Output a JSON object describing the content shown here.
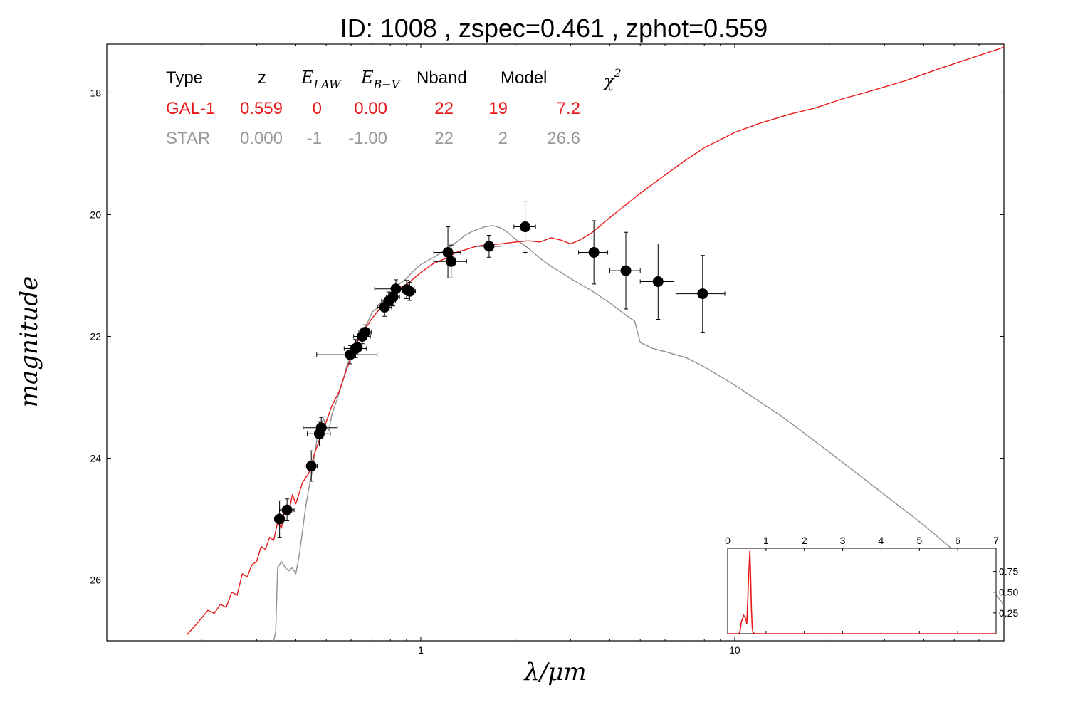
{
  "chart_data": {
    "type": "scatter",
    "title": "ID:  1008  , zspec=0.461 , zphot=0.559",
    "xlabel": "λ/μm",
    "ylabel": "magnitude",
    "x_scale": "log",
    "y_inverted": true,
    "xlim": [
      0.1,
      72
    ],
    "ylim": [
      27,
      17.2
    ],
    "x_ticks": [
      {
        "value": 1,
        "label": "1"
      },
      {
        "value": 10,
        "label": "10"
      }
    ],
    "y_ticks": [
      {
        "value": 18,
        "label": "18"
      },
      {
        "value": 20,
        "label": "20"
      },
      {
        "value": 22,
        "label": "22"
      },
      {
        "value": 24,
        "label": "24"
      },
      {
        "value": 26,
        "label": "26"
      }
    ],
    "colors": {
      "galaxy": "#e8191b",
      "star": "#909090",
      "points": "#000000"
    },
    "fit_table": {
      "headers": [
        "Type",
        "z",
        "E_LAW",
        "E_B−V",
        "Nband",
        "Model",
        "χ²"
      ],
      "rows": [
        {
          "type": "GAL-1",
          "z": "0.559",
          "elaw": "0",
          "ebv": "0.00",
          "nband": "22",
          "model": "19",
          "chi2": "7.2",
          "color": "#e8191b"
        },
        {
          "type": "STAR",
          "z": "0.000",
          "elaw": "-1",
          "ebv": "-1.00",
          "nband": "22",
          "model": "2",
          "chi2": "26.6",
          "color": "#999999"
        }
      ]
    },
    "photometry": [
      {
        "x": 0.355,
        "y": 25.0,
        "xerr": 0.013,
        "yerr": 0.3
      },
      {
        "x": 0.375,
        "y": 24.85,
        "xerr": 0.02,
        "yerr": 0.18
      },
      {
        "x": 0.448,
        "y": 24.13,
        "xerr": 0.02,
        "yerr": 0.25
      },
      {
        "x": 0.475,
        "y": 23.6,
        "xerr": 0.04,
        "yerr": 0.2
      },
      {
        "x": 0.482,
        "y": 23.5,
        "xerr": 0.06,
        "yerr": 0.17
      },
      {
        "x": 0.596,
        "y": 22.3,
        "xerr": 0.13,
        "yerr": 0.15
      },
      {
        "x": 0.62,
        "y": 22.2,
        "xerr": 0.05,
        "yerr": 0.15
      },
      {
        "x": 0.628,
        "y": 22.18,
        "xerr": 0.02,
        "yerr": 0.12
      },
      {
        "x": 0.651,
        "y": 22.0,
        "xerr": 0.04,
        "yerr": 0.12
      },
      {
        "x": 0.665,
        "y": 21.93,
        "xerr": 0.03,
        "yerr": 0.12
      },
      {
        "x": 0.767,
        "y": 21.52,
        "xerr": 0.04,
        "yerr": 0.15
      },
      {
        "x": 0.79,
        "y": 21.42,
        "xerr": 0.04,
        "yerr": 0.15
      },
      {
        "x": 0.816,
        "y": 21.35,
        "xerr": 0.04,
        "yerr": 0.15
      },
      {
        "x": 0.833,
        "y": 21.22,
        "xerr": 0.12,
        "yerr": 0.15
      },
      {
        "x": 0.901,
        "y": 21.23,
        "xerr": 0.04,
        "yerr": 0.15
      },
      {
        "x": 0.922,
        "y": 21.26,
        "xerr": 0.04,
        "yerr": 0.15
      },
      {
        "x": 1.22,
        "y": 20.62,
        "xerr": 0.12,
        "yerr": 0.42
      },
      {
        "x": 1.25,
        "y": 20.77,
        "xerr": 0.15,
        "yerr": 0.27
      },
      {
        "x": 1.65,
        "y": 20.52,
        "xerr": 0.15,
        "yerr": 0.18
      },
      {
        "x": 2.15,
        "y": 20.2,
        "xerr": 0.17,
        "yerr": 0.42
      },
      {
        "x": 3.56,
        "y": 20.62,
        "xerr": 0.38,
        "yerr": 0.52
      },
      {
        "x": 4.5,
        "y": 20.92,
        "xerr": 0.5,
        "yerr": 0.63
      },
      {
        "x": 5.7,
        "y": 21.1,
        "xerr": 0.7,
        "yerr": 0.62
      },
      {
        "x": 7.9,
        "y": 21.3,
        "xerr": 1.4,
        "yerr": 0.63
      }
    ],
    "series": [
      {
        "name": "GAL-1",
        "color": "#e8191b",
        "points": [
          [
            0.18,
            26.9
          ],
          [
            0.195,
            26.7
          ],
          [
            0.21,
            26.5
          ],
          [
            0.22,
            26.55
          ],
          [
            0.23,
            26.4
          ],
          [
            0.24,
            26.45
          ],
          [
            0.25,
            26.2
          ],
          [
            0.26,
            26.25
          ],
          [
            0.27,
            25.9
          ],
          [
            0.28,
            25.95
          ],
          [
            0.29,
            25.75
          ],
          [
            0.3,
            25.7
          ],
          [
            0.31,
            25.45
          ],
          [
            0.32,
            25.5
          ],
          [
            0.33,
            25.3
          ],
          [
            0.34,
            25.35
          ],
          [
            0.35,
            25.05
          ],
          [
            0.36,
            25.15
          ],
          [
            0.37,
            24.8
          ],
          [
            0.38,
            24.9
          ],
          [
            0.39,
            24.6
          ],
          [
            0.4,
            24.75
          ],
          [
            0.42,
            24.4
          ],
          [
            0.44,
            24.25
          ],
          [
            0.46,
            23.9
          ],
          [
            0.48,
            23.65
          ],
          [
            0.5,
            23.4
          ],
          [
            0.52,
            23.15
          ],
          [
            0.55,
            22.9
          ],
          [
            0.58,
            22.55
          ],
          [
            0.61,
            22.25
          ],
          [
            0.64,
            22.0
          ],
          [
            0.67,
            21.85
          ],
          [
            0.7,
            21.7
          ],
          [
            0.74,
            21.55
          ],
          [
            0.78,
            21.45
          ],
          [
            0.82,
            21.3
          ],
          [
            0.86,
            21.2
          ],
          [
            0.9,
            21.15
          ],
          [
            0.95,
            21.05
          ],
          [
            1.0,
            20.95
          ],
          [
            1.1,
            20.8
          ],
          [
            1.2,
            20.72
          ],
          [
            1.3,
            20.62
          ],
          [
            1.4,
            20.57
          ],
          [
            1.5,
            20.52
          ],
          [
            1.6,
            20.5
          ],
          [
            1.8,
            20.48
          ],
          [
            2.0,
            20.45
          ],
          [
            2.2,
            20.43
          ],
          [
            2.4,
            20.45
          ],
          [
            2.6,
            20.38
          ],
          [
            2.8,
            20.42
          ],
          [
            3.0,
            20.48
          ],
          [
            3.2,
            20.42
          ],
          [
            3.5,
            20.3
          ],
          [
            4.0,
            20.05
          ],
          [
            5.0,
            19.65
          ],
          [
            6.0,
            19.35
          ],
          [
            7.0,
            19.1
          ],
          [
            8.0,
            18.9
          ],
          [
            10.0,
            18.65
          ],
          [
            12.0,
            18.5
          ],
          [
            15.0,
            18.35
          ],
          [
            18.0,
            18.25
          ],
          [
            22.0,
            18.1
          ],
          [
            28.0,
            17.95
          ],
          [
            35.0,
            17.8
          ],
          [
            45.0,
            17.6
          ],
          [
            55.0,
            17.45
          ],
          [
            72.0,
            17.25
          ]
        ]
      },
      {
        "name": "STAR",
        "color": "#909090",
        "points": [
          [
            0.34,
            27.0
          ],
          [
            0.345,
            26.85
          ],
          [
            0.35,
            25.8
          ],
          [
            0.36,
            25.7
          ],
          [
            0.37,
            25.8
          ],
          [
            0.38,
            25.85
          ],
          [
            0.39,
            25.8
          ],
          [
            0.4,
            25.9
          ],
          [
            0.41,
            25.6
          ],
          [
            0.42,
            25.2
          ],
          [
            0.43,
            24.8
          ],
          [
            0.44,
            24.5
          ],
          [
            0.45,
            24.25
          ],
          [
            0.46,
            23.9
          ],
          [
            0.47,
            23.6
          ],
          [
            0.48,
            23.45
          ],
          [
            0.49,
            23.35
          ],
          [
            0.5,
            23.5
          ],
          [
            0.51,
            23.55
          ],
          [
            0.52,
            23.3
          ],
          [
            0.54,
            23.05
          ],
          [
            0.56,
            22.8
          ],
          [
            0.58,
            22.5
          ],
          [
            0.6,
            22.3
          ],
          [
            0.62,
            22.1
          ],
          [
            0.64,
            21.95
          ],
          [
            0.66,
            21.9
          ],
          [
            0.68,
            21.75
          ],
          [
            0.7,
            21.6
          ],
          [
            0.72,
            21.55
          ],
          [
            0.74,
            21.45
          ],
          [
            0.76,
            21.6
          ],
          [
            0.78,
            21.4
          ],
          [
            0.8,
            21.3
          ],
          [
            0.85,
            21.15
          ],
          [
            0.9,
            21.05
          ],
          [
            0.95,
            20.92
          ],
          [
            1.0,
            20.82
          ],
          [
            1.1,
            20.7
          ],
          [
            1.2,
            20.58
          ],
          [
            1.3,
            20.45
          ],
          [
            1.4,
            20.32
          ],
          [
            1.5,
            20.25
          ],
          [
            1.6,
            20.2
          ],
          [
            1.7,
            20.18
          ],
          [
            1.8,
            20.22
          ],
          [
            1.9,
            20.3
          ],
          [
            2.0,
            20.4
          ],
          [
            2.2,
            20.55
          ],
          [
            2.4,
            20.72
          ],
          [
            2.6,
            20.85
          ],
          [
            2.8,
            20.95
          ],
          [
            3.0,
            21.05
          ],
          [
            3.5,
            21.25
          ],
          [
            4.0,
            21.45
          ],
          [
            4.5,
            21.65
          ],
          [
            4.8,
            21.75
          ],
          [
            5.0,
            22.1
          ],
          [
            5.5,
            22.2
          ],
          [
            6.0,
            22.25
          ],
          [
            7.0,
            22.35
          ],
          [
            8.0,
            22.5
          ],
          [
            10.0,
            22.8
          ],
          [
            14.0,
            23.3
          ],
          [
            20.0,
            23.9
          ],
          [
            30.0,
            24.6
          ],
          [
            40.0,
            25.1
          ],
          [
            55.0,
            25.7
          ],
          [
            72.0,
            26.4
          ]
        ]
      }
    ],
    "inset": {
      "type": "line",
      "xlim": [
        0,
        7
      ],
      "ylim": [
        0,
        1.03
      ],
      "x_ticks": [
        "0",
        "1",
        "2",
        "3",
        "4",
        "5",
        "6",
        "7"
      ],
      "y_ticks": [
        {
          "value": 0.25,
          "label": "0.25"
        },
        {
          "value": 0.5,
          "label": "0.50"
        },
        {
          "value": 0.75,
          "label": "0.75"
        }
      ],
      "color": "#e8191b",
      "points": [
        [
          0,
          0
        ],
        [
          0.3,
          0
        ],
        [
          0.33,
          0.05
        ],
        [
          0.36,
          0.15
        ],
        [
          0.39,
          0.18
        ],
        [
          0.42,
          0.22
        ],
        [
          0.45,
          0.2
        ],
        [
          0.48,
          0.17
        ],
        [
          0.5,
          0.12
        ],
        [
          0.52,
          0.35
        ],
        [
          0.54,
          0.6
        ],
        [
          0.56,
          0.82
        ],
        [
          0.58,
          1.0
        ],
        [
          0.6,
          0.7
        ],
        [
          0.62,
          0.3
        ],
        [
          0.64,
          0.08
        ],
        [
          0.66,
          0.02
        ],
        [
          0.7,
          0
        ],
        [
          7,
          0
        ]
      ]
    }
  }
}
